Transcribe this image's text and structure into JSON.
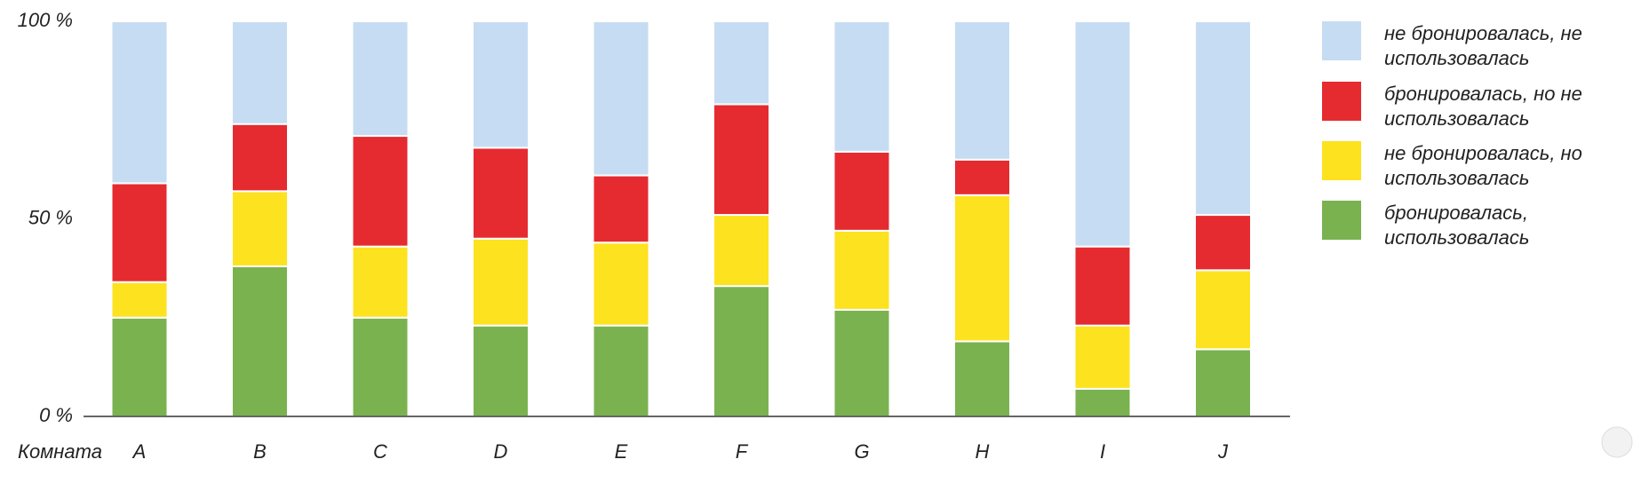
{
  "chart_data": {
    "type": "stacked-bar-100",
    "x_label": "Комната",
    "categories": [
      "A",
      "B",
      "C",
      "D",
      "E",
      "F",
      "G",
      "H",
      "I",
      "J"
    ],
    "series": [
      {
        "name": "бронировалась, использовалась",
        "color": "#7ab250",
        "values": [
          25,
          38,
          25,
          23,
          23,
          33,
          27,
          19,
          7,
          17
        ]
      },
      {
        "name": "не бронировалась, но использовалась",
        "color": "#fde21f",
        "values": [
          9,
          19,
          18,
          22,
          21,
          18,
          20,
          37,
          16,
          20
        ]
      },
      {
        "name": "бронировалась, но не использовалась",
        "color": "#e52b30",
        "values": [
          25,
          17,
          28,
          23,
          17,
          28,
          20,
          9,
          20,
          14
        ]
      },
      {
        "name": "не бронировалась, не использовалась",
        "color": "#c6dcf2",
        "values": [
          41,
          26,
          29,
          32,
          39,
          21,
          33,
          35,
          57,
          49
        ]
      }
    ],
    "ylim": [
      0,
      100
    ],
    "yticks": [
      {
        "value": 0,
        "label": "0 %"
      },
      {
        "value": 50,
        "label": "50 %"
      },
      {
        "value": 100,
        "label": "100 %"
      }
    ],
    "legend": "right"
  }
}
